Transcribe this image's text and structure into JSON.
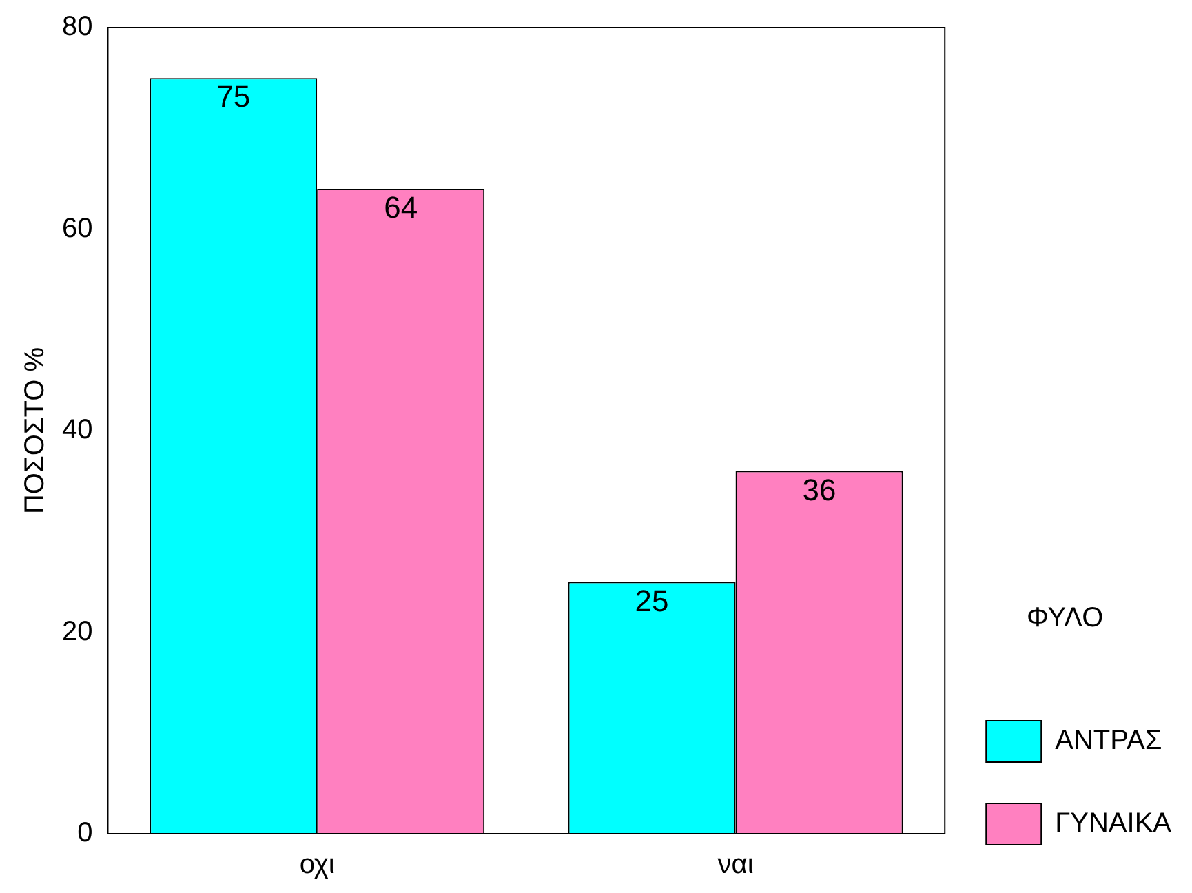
{
  "chart_data": {
    "type": "bar",
    "ylabel": "ΠΟΣΟΣΤΟ %",
    "legend_title": "ΦΥΛΟ",
    "categories": [
      "οχι",
      "ναι"
    ],
    "series": [
      {
        "name": "ΑΝΤΡΑΣ",
        "color": "#00ffff",
        "values": [
          75,
          25
        ]
      },
      {
        "name": "ΓΥΝΑΙΚΑ",
        "color": "#ff80c0",
        "values": [
          64,
          36
        ]
      }
    ],
    "ylim": [
      0,
      80
    ],
    "yticks": [
      0,
      20,
      40,
      60,
      80
    ],
    "grid": false,
    "legend": "right",
    "data_labels": true
  }
}
